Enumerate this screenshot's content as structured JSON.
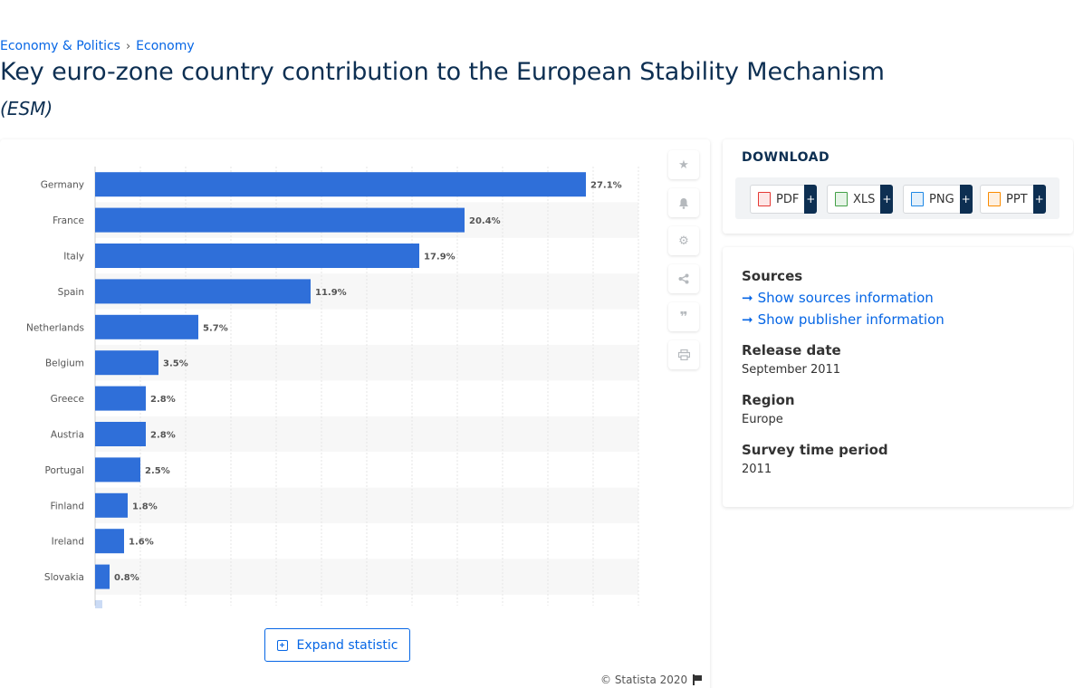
{
  "breadcrumb": {
    "item1": "Economy & Politics",
    "separator": "›",
    "item2": "Economy"
  },
  "page": {
    "title": "Key euro-zone country contribution to the European Stability Mechanism",
    "subtitle": "(ESM)"
  },
  "chart_data": {
    "type": "bar",
    "orientation": "horizontal",
    "categories": [
      "Germany",
      "France",
      "Italy",
      "Spain",
      "Netherlands",
      "Belgium",
      "Greece",
      "Austria",
      "Portugal",
      "Finland",
      "Ireland",
      "Slovakia"
    ],
    "values": [
      27.1,
      20.4,
      17.9,
      11.9,
      5.7,
      3.5,
      2.8,
      2.8,
      2.5,
      1.8,
      1.6,
      0.8
    ],
    "value_labels": [
      "27.1%",
      "20.4%",
      "17.9%",
      "11.9%",
      "5.7%",
      "3.5%",
      "2.8%",
      "2.8%",
      "2.5%",
      "1.8%",
      "1.6%",
      "0.8%"
    ],
    "xlim": [
      0,
      30
    ],
    "grid": true,
    "bar_color": "#2f6fd9"
  },
  "toolbar": {
    "icons": [
      "star-icon",
      "bell-icon",
      "gear-icon",
      "share-icon",
      "quote-icon",
      "print-icon"
    ]
  },
  "expand": {
    "label": "Expand statistic"
  },
  "copyright": "© Statista 2020",
  "download": {
    "heading": "DOWNLOAD",
    "buttons": [
      {
        "label": "PDF",
        "plus": "+",
        "color": "#e53935"
      },
      {
        "label": "XLS",
        "plus": "+",
        "color": "#43a047"
      },
      {
        "label": "PNG",
        "plus": "+",
        "color": "#1e88e5"
      },
      {
        "label": "PPT",
        "plus": "+",
        "color": "#fb8c00"
      }
    ]
  },
  "info": {
    "sources_heading": "Sources",
    "show_sources": "Show sources information",
    "show_publisher": "Show publisher information",
    "release_heading": "Release date",
    "release_value": "September 2011",
    "region_heading": "Region",
    "region_value": "Europe",
    "survey_heading": "Survey time period",
    "survey_value": "2011"
  }
}
